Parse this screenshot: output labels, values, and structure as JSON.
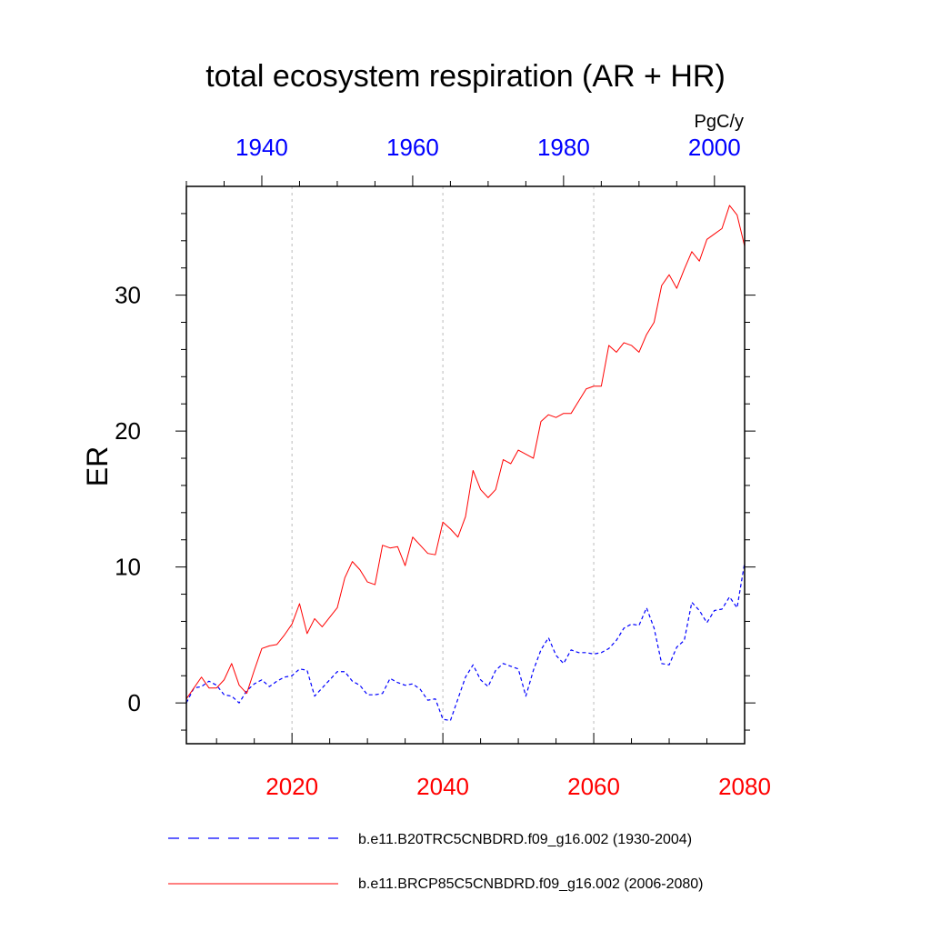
{
  "chart_data": {
    "type": "line",
    "title": "total ecosystem respiration (AR + HR)",
    "units": "PgC/y",
    "ylabel": "ER",
    "ylim": [
      -3,
      38
    ],
    "yticks": [
      0,
      10,
      20,
      30
    ],
    "bottom_axis": {
      "xlim": [
        2006,
        2080
      ],
      "ticks": [
        2020,
        2040,
        2060,
        2080
      ],
      "color": "#ff0000"
    },
    "top_axis": {
      "xlim": [
        1930,
        2004
      ],
      "ticks": [
        1940,
        1960,
        1980,
        2000
      ],
      "color": "#0000ff"
    },
    "grid_x": [
      2020,
      2040,
      2060
    ],
    "legend": {
      "position": "bottom",
      "entries": [
        {
          "label": "b.e11.B20TRC5CNBDRD.f09_g16.002 (1930-2004)",
          "series": 0
        },
        {
          "label": "b.e11.BRCP85C5CNBDRD.f09_g16.002 (2006-2080)",
          "series": 1
        }
      ]
    },
    "series": [
      {
        "name": "b.e11.B20TRC5CNBDRD.f09_g16.002 (1930-2004)",
        "axis": "top",
        "color": "#0000ff",
        "style": "dashed",
        "x_start": 1930,
        "values": [
          0.0,
          1.1,
          1.2,
          1.6,
          1.3,
          0.6,
          0.5,
          0.0,
          0.9,
          1.4,
          1.7,
          1.2,
          1.6,
          1.9,
          2.0,
          2.5,
          2.4,
          0.5,
          1.1,
          1.7,
          2.3,
          2.3,
          1.6,
          1.3,
          0.6,
          0.6,
          0.7,
          1.8,
          1.5,
          1.3,
          1.4,
          1.0,
          0.2,
          0.3,
          -1.2,
          -1.3,
          0.3,
          1.9,
          2.8,
          1.7,
          1.2,
          2.4,
          2.9,
          2.7,
          2.5,
          0.5,
          2.4,
          3.9,
          4.8,
          3.5,
          2.9,
          3.9,
          3.7,
          3.7,
          3.6,
          3.7,
          4.0,
          4.6,
          5.5,
          5.8,
          5.7,
          7.0,
          5.5,
          2.9,
          2.8,
          4.1,
          4.6,
          7.4,
          6.8,
          5.9,
          6.8,
          6.9,
          7.8,
          7.0,
          10.3
        ]
      },
      {
        "name": "b.e11.BRCP85C5CNBDRD.f09_g16.002 (2006-2080)",
        "axis": "bottom",
        "color": "#ff0000",
        "style": "solid",
        "x_start": 2006,
        "values": [
          0.3,
          1.1,
          1.9,
          1.1,
          1.1,
          1.7,
          2.9,
          1.3,
          0.7,
          2.4,
          4.0,
          4.2,
          4.3,
          5.0,
          5.8,
          7.3,
          5.1,
          6.2,
          5.6,
          6.3,
          7.0,
          9.2,
          10.4,
          9.8,
          8.9,
          8.7,
          11.6,
          11.4,
          11.5,
          10.1,
          12.2,
          11.6,
          11.0,
          10.9,
          13.3,
          12.8,
          12.2,
          13.7,
          17.1,
          15.7,
          15.1,
          15.7,
          17.9,
          17.6,
          18.6,
          18.3,
          18.0,
          20.7,
          21.2,
          21.0,
          21.3,
          21.3,
          22.2,
          23.1,
          23.3,
          23.3,
          26.3,
          25.8,
          26.5,
          26.3,
          25.8,
          27.1,
          28.0,
          30.7,
          31.5,
          30.5,
          31.9,
          33.2,
          32.5,
          34.1,
          34.5,
          34.9,
          36.6,
          35.9,
          33.6
        ]
      }
    ]
  }
}
